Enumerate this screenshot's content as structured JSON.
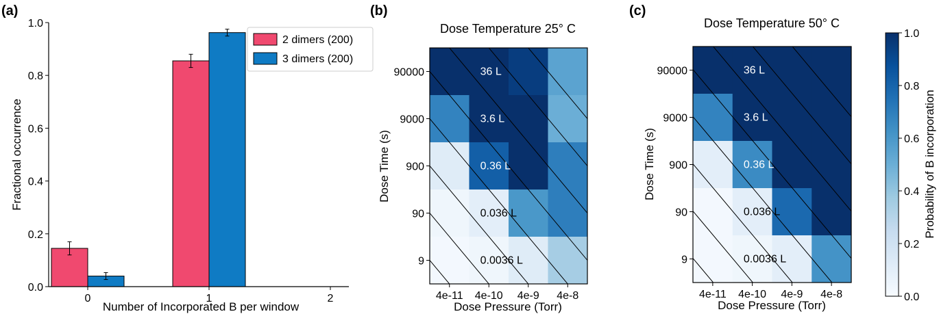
{
  "chart_data": [
    {
      "type": "bar",
      "panel_label": "(a)",
      "xlabel": "Number of Incorporated B per window",
      "ylabel": "Fractional occurrence",
      "categories": [
        "0",
        "1",
        "2"
      ],
      "ylim": [
        0,
        1.0
      ],
      "yticks": [
        "0.0",
        "0.2",
        "0.4",
        "0.6",
        "0.8",
        "1.0"
      ],
      "legend_position": "top-right",
      "series": [
        {
          "name": "2 dimers (200)",
          "color": "#f0496f",
          "values": [
            0.145,
            0.855,
            0.0
          ],
          "errors": [
            0.025,
            0.025,
            0.0
          ]
        },
        {
          "name": "3 dimers (200)",
          "color": "#0f7bc4",
          "values": [
            0.04,
            0.962,
            0.0
          ],
          "errors": [
            0.013,
            0.013,
            0.0
          ]
        }
      ]
    },
    {
      "type": "heatmap",
      "panel_label": "(b)",
      "title": "Dose Temperature 25° C",
      "xlabel": "Dose Pressure (Torr)",
      "ylabel": "Dose Time (s)",
      "x": [
        "4e-11",
        "4e-10",
        "4e-9",
        "4e-8"
      ],
      "y": [
        "90000",
        "9000",
        "900",
        "90",
        "9"
      ],
      "values": [
        [
          1.0,
          1.0,
          0.95,
          0.55
        ],
        [
          0.68,
          1.0,
          1.0,
          0.5
        ],
        [
          0.12,
          0.82,
          1.0,
          0.7
        ],
        [
          0.04,
          0.1,
          0.6,
          0.7
        ],
        [
          0.02,
          0.04,
          0.12,
          0.35
        ]
      ],
      "annotations": [
        "36 L",
        "3.6 L",
        "0.36 L",
        "0.036 L",
        "0.0036 L"
      ]
    },
    {
      "type": "heatmap",
      "panel_label": "(c)",
      "title": "Dose Temperature 50° C",
      "xlabel": "Dose Pressure (Torr)",
      "ylabel": "Dose Time (s)",
      "x": [
        "4e-11",
        "4e-10",
        "4e-9",
        "4e-8"
      ],
      "y": [
        "90000",
        "9000",
        "900",
        "90",
        "9"
      ],
      "values": [
        [
          1.0,
          1.0,
          1.0,
          1.0
        ],
        [
          0.68,
          1.0,
          1.0,
          1.0
        ],
        [
          0.1,
          0.65,
          1.0,
          1.0
        ],
        [
          0.02,
          0.1,
          0.78,
          1.0
        ],
        [
          0.02,
          0.04,
          0.1,
          0.62
        ]
      ],
      "annotations": [
        "36 L",
        "3.6 L",
        "0.36 L",
        "0.036 L",
        "0.0036 L"
      ],
      "colorbar": {
        "label": "Probability of B incorporation",
        "range": [
          0.0,
          1.0
        ],
        "ticks": [
          "0.0",
          "0.2",
          "0.4",
          "0.6",
          "0.8",
          "1.0"
        ],
        "color_low": "#f7fbff",
        "color_high": "#08306b"
      }
    }
  ]
}
